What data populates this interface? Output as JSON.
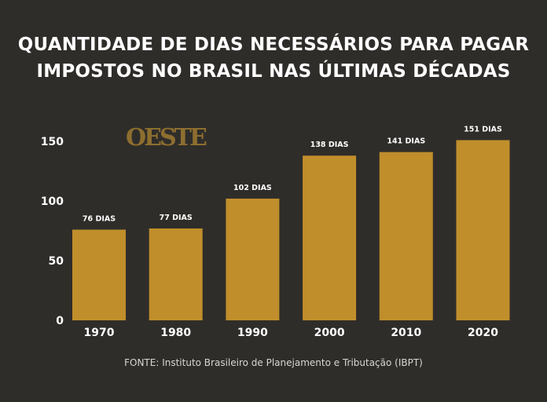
{
  "chart_data": {
    "type": "bar",
    "title_lines": [
      "QUANTIDADE DE DIAS NECESSÁRIOS PARA PAGAR",
      "IMPOSTOS NO BRASIL NAS ÚLTIMAS DÉCADAS"
    ],
    "categories": [
      "1970",
      "1980",
      "1990",
      "2000",
      "2010",
      "2020"
    ],
    "values": [
      76,
      77,
      102,
      138,
      141,
      151
    ],
    "data_labels": [
      "76 DIAS",
      "77 DIAS",
      "102 DIAS",
      "138 DIAS",
      "141 DIAS",
      "151 DIAS"
    ],
    "yticks": [
      0,
      50,
      100,
      150
    ],
    "ylim": [
      0,
      150
    ],
    "grid": false,
    "xlabel": "",
    "ylabel": "",
    "bar_color": "#c08e2b",
    "background_color": "#2f2d2a"
  },
  "logo": "OESTE",
  "source": "FONTE: Instituto Brasileiro de Planejamento e Tributação (IBPT)"
}
